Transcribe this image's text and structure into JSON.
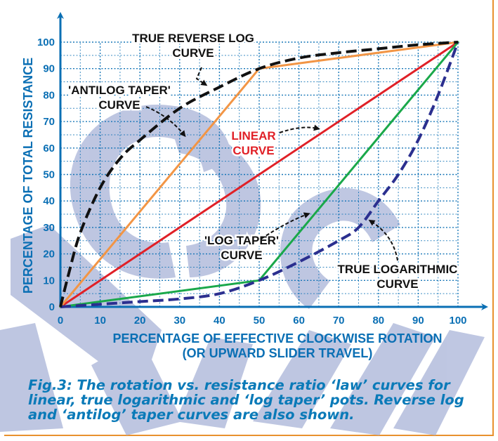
{
  "chart_data": {
    "type": "line",
    "xlabel_line1": "PERCENTAGE OF EFFECTIVE CLOCKWISE ROTATION",
    "xlabel_line2": "(OR UPWARD SLIDER TRAVEL)",
    "ylabel": "PERCENTAGE OF TOTAL RESISTANCE",
    "xlim": [
      0,
      100
    ],
    "ylim": [
      0,
      100
    ],
    "x_ticks": [
      "0",
      "10",
      "20",
      "30",
      "40",
      "50",
      "60",
      "70",
      "80",
      "90",
      "100"
    ],
    "y_ticks": [
      "0",
      "10",
      "20",
      "30",
      "40",
      "50",
      "60",
      "70",
      "80",
      "90",
      "100"
    ],
    "grid": true,
    "series": [
      {
        "name": "TRUE REVERSE LOG CURVE",
        "color": "#111111",
        "style": "dashed",
        "points": [
          [
            0,
            0
          ],
          [
            2,
            12
          ],
          [
            5,
            28
          ],
          [
            10,
            45
          ],
          [
            15,
            56
          ],
          [
            20,
            63
          ],
          [
            30,
            75
          ],
          [
            40,
            83
          ],
          [
            50,
            90
          ],
          [
            60,
            94
          ],
          [
            70,
            96
          ],
          [
            80,
            97.5
          ],
          [
            90,
            99
          ],
          [
            100,
            100
          ]
        ]
      },
      {
        "name": "'ANTILOG TAPER' CURVE",
        "color": "#f29545",
        "style": "solid",
        "points": [
          [
            0,
            0
          ],
          [
            50,
            90
          ],
          [
            100,
            100
          ]
        ]
      },
      {
        "name": "LINEAR CURVE",
        "color": "#e02027",
        "style": "solid",
        "points": [
          [
            0,
            0
          ],
          [
            100,
            100
          ]
        ]
      },
      {
        "name": "'LOG TAPER' CURVE",
        "color": "#1aa84a",
        "style": "solid",
        "points": [
          [
            0,
            0
          ],
          [
            50,
            10
          ],
          [
            100,
            100
          ]
        ]
      },
      {
        "name": "TRUE LOGARITHMIC CURVE",
        "color": "#2b2f8f",
        "style": "dashed",
        "points": [
          [
            0,
            0
          ],
          [
            10,
            1
          ],
          [
            20,
            2
          ],
          [
            30,
            3
          ],
          [
            40,
            5
          ],
          [
            50,
            10
          ],
          [
            60,
            17
          ],
          [
            70,
            25
          ],
          [
            75,
            30
          ],
          [
            80,
            40
          ],
          [
            85,
            50
          ],
          [
            90,
            63
          ],
          [
            95,
            80
          ],
          [
            100,
            100
          ]
        ]
      }
    ],
    "annotations": [
      {
        "lines": [
          "TRUE REVERSE LOG",
          "CURVE"
        ],
        "color": "#111111"
      },
      {
        "lines": [
          "'ANTILOG TAPER'",
          "CURVE"
        ],
        "color": "#111111"
      },
      {
        "lines": [
          "LINEAR",
          "CURVE"
        ],
        "color": "#e02027"
      },
      {
        "lines": [
          "'LOG TAPER'",
          "CURVE"
        ],
        "color": "#111111"
      },
      {
        "lines": [
          "TRUE LOGARITHMIC",
          "CURVE"
        ],
        "color": "#111111"
      }
    ],
    "axis_color": "#0a6fb4",
    "grid_color": "#0a6fb4"
  },
  "caption": "Fig.3: The rotation vs. resistance ratio ‘law’ curves for linear, true logarithmic and ‘log taper’ pots. Reverse log and ‘antilog’ taper curves are also shown."
}
